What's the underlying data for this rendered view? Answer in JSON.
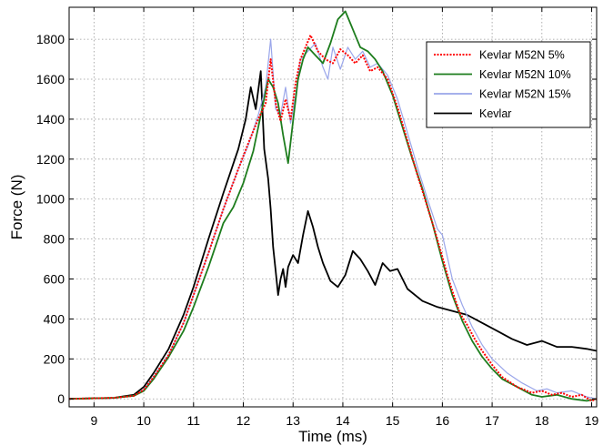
{
  "chart_data": {
    "type": "line",
    "title": "",
    "xlabel": "Time (ms)",
    "ylabel": "Force (N)",
    "xlim": [
      8.5,
      19.1
    ],
    "ylim": [
      -40,
      1960
    ],
    "xticks": [
      9,
      10,
      11,
      12,
      13,
      14,
      15,
      16,
      17,
      18,
      19
    ],
    "yticks": [
      0,
      200,
      400,
      600,
      800,
      1000,
      1200,
      1400,
      1600,
      1800
    ],
    "grid": true,
    "legend_position": "top-right",
    "series": [
      {
        "name": "Kevlar M52N 5%",
        "color": "#ff0000",
        "style": "dotted",
        "x": [
          8.5,
          9.4,
          9.8,
          10.0,
          10.2,
          10.5,
          10.8,
          11.0,
          11.3,
          11.6,
          11.9,
          12.1,
          12.3,
          12.45,
          12.55,
          12.65,
          12.75,
          12.85,
          12.95,
          13.05,
          13.15,
          13.25,
          13.35,
          13.5,
          13.65,
          13.8,
          13.95,
          14.1,
          14.25,
          14.4,
          14.55,
          14.7,
          14.9,
          15.1,
          15.3,
          15.5,
          15.7,
          15.85,
          16.0,
          16.1,
          16.2,
          16.35,
          16.5,
          16.65,
          16.8,
          17.0,
          17.2,
          17.5,
          17.8,
          18.0,
          18.2,
          18.4,
          18.6,
          18.8,
          19.0,
          19.1
        ],
        "y": [
          0,
          5,
          15,
          45,
          110,
          220,
          380,
          520,
          730,
          950,
          1150,
          1280,
          1400,
          1480,
          1700,
          1480,
          1390,
          1500,
          1400,
          1580,
          1700,
          1760,
          1820,
          1740,
          1700,
          1680,
          1750,
          1720,
          1680,
          1720,
          1640,
          1660,
          1600,
          1460,
          1290,
          1120,
          960,
          840,
          710,
          620,
          540,
          430,
          370,
          300,
          240,
          170,
          110,
          60,
          30,
          40,
          20,
          30,
          10,
          20,
          -10,
          0
        ]
      },
      {
        "name": "Kevlar M52N 10%",
        "color": "#1e7d1e",
        "style": "solid",
        "x": [
          8.5,
          9.4,
          9.8,
          10.0,
          10.2,
          10.5,
          10.8,
          11.0,
          11.3,
          11.6,
          11.8,
          12.0,
          12.2,
          12.35,
          12.5,
          12.6,
          12.7,
          12.8,
          12.9,
          13.0,
          13.1,
          13.2,
          13.3,
          13.45,
          13.6,
          13.75,
          13.9,
          14.05,
          14.15,
          14.25,
          14.35,
          14.5,
          14.65,
          14.8,
          15.0,
          15.2,
          15.4,
          15.6,
          15.8,
          16.0,
          16.2,
          16.4,
          16.6,
          16.8,
          17.0,
          17.2,
          17.5,
          17.8,
          18.0,
          18.3,
          18.6,
          18.9,
          19.1
        ],
        "y": [
          0,
          5,
          15,
          40,
          100,
          210,
          340,
          460,
          660,
          880,
          960,
          1080,
          1240,
          1420,
          1600,
          1560,
          1480,
          1320,
          1180,
          1390,
          1600,
          1700,
          1760,
          1720,
          1680,
          1780,
          1900,
          1940,
          1880,
          1820,
          1760,
          1740,
          1700,
          1640,
          1520,
          1360,
          1200,
          1050,
          880,
          690,
          520,
          390,
          290,
          210,
          150,
          100,
          60,
          20,
          10,
          20,
          0,
          -10,
          0
        ]
      },
      {
        "name": "Kevlar M52N 15%",
        "color": "#9aa6ea",
        "style": "solid",
        "x": [
          8.5,
          9.4,
          9.8,
          10.0,
          10.2,
          10.5,
          10.8,
          11.0,
          11.3,
          11.6,
          11.9,
          12.1,
          12.3,
          12.45,
          12.55,
          12.65,
          12.75,
          12.85,
          12.95,
          13.05,
          13.15,
          13.3,
          13.45,
          13.6,
          13.7,
          13.8,
          13.95,
          14.1,
          14.25,
          14.4,
          14.55,
          14.7,
          14.9,
          15.1,
          15.3,
          15.5,
          15.7,
          15.9,
          16.0,
          16.2,
          16.4,
          16.6,
          16.8,
          17.0,
          17.3,
          17.6,
          17.9,
          18.1,
          18.3,
          18.6,
          18.9,
          19.1
        ],
        "y": [
          0,
          5,
          15,
          45,
          110,
          220,
          380,
          520,
          730,
          950,
          1150,
          1270,
          1420,
          1560,
          1800,
          1450,
          1420,
          1560,
          1380,
          1520,
          1700,
          1740,
          1780,
          1660,
          1600,
          1760,
          1650,
          1760,
          1700,
          1740,
          1660,
          1680,
          1620,
          1500,
          1330,
          1160,
          1000,
          850,
          820,
          600,
          470,
          360,
          270,
          200,
          130,
          80,
          40,
          50,
          30,
          40,
          10,
          0
        ]
      },
      {
        "name": "Kevlar",
        "color": "#000000",
        "style": "solid",
        "x": [
          8.5,
          9.4,
          9.8,
          10.0,
          10.2,
          10.5,
          10.8,
          11.0,
          11.3,
          11.6,
          11.9,
          12.05,
          12.15,
          12.25,
          12.35,
          12.42,
          12.5,
          12.55,
          12.6,
          12.65,
          12.7,
          12.75,
          12.8,
          12.85,
          12.9,
          13.0,
          13.1,
          13.2,
          13.3,
          13.4,
          13.5,
          13.6,
          13.75,
          13.9,
          14.05,
          14.2,
          14.35,
          14.5,
          14.65,
          14.8,
          14.95,
          15.1,
          15.3,
          15.6,
          15.9,
          16.2,
          16.5,
          16.8,
          17.1,
          17.4,
          17.7,
          18.0,
          18.3,
          18.6,
          18.9,
          19.1
        ],
        "y": [
          0,
          5,
          20,
          60,
          130,
          250,
          420,
          560,
          800,
          1030,
          1250,
          1400,
          1560,
          1450,
          1640,
          1250,
          1100,
          950,
          760,
          640,
          520,
          600,
          650,
          560,
          660,
          720,
          680,
          820,
          940,
          860,
          760,
          680,
          590,
          560,
          620,
          740,
          700,
          640,
          570,
          680,
          640,
          650,
          550,
          490,
          460,
          440,
          420,
          380,
          340,
          300,
          270,
          290,
          260,
          260,
          250,
          240
        ]
      }
    ]
  }
}
